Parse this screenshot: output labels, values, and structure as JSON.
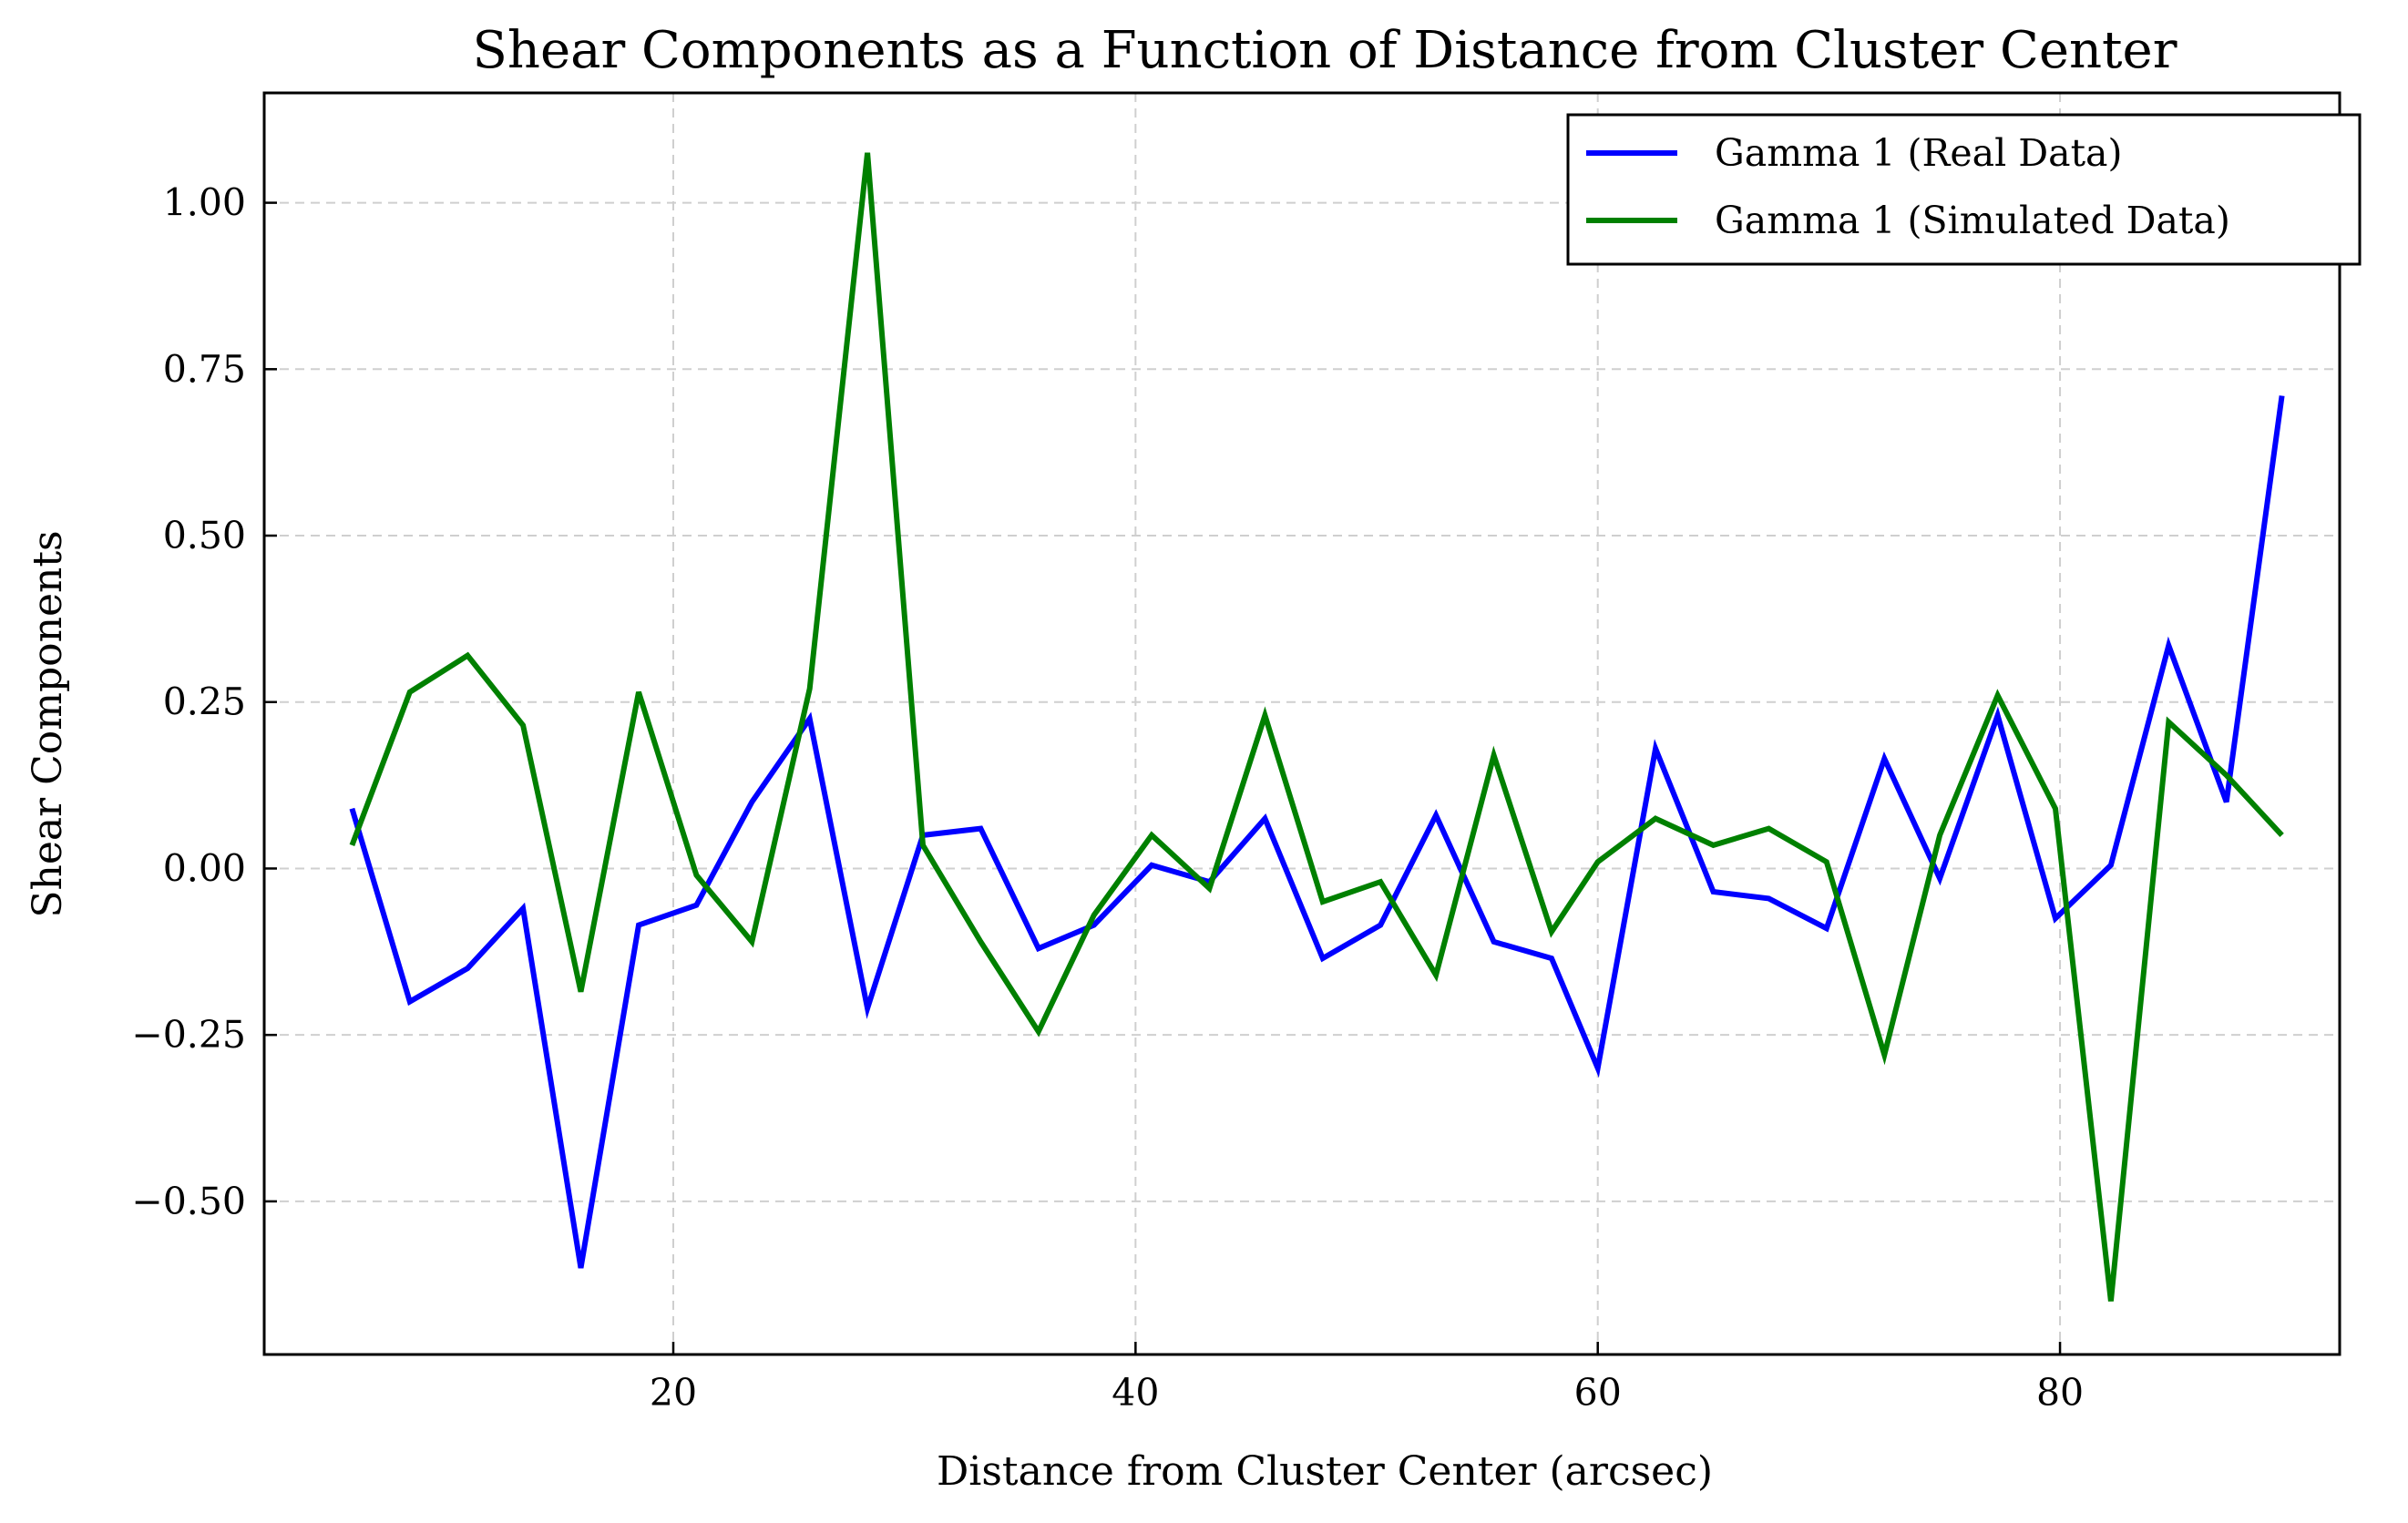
{
  "chart_data": {
    "type": "line",
    "title": "Shear Components as a Function of Distance from Cluster Center",
    "xlabel": "Distance from Cluster Center (arcsec)",
    "ylabel": "Shear Components",
    "xlim": [
      2.3,
      92.1
    ],
    "ylim": [
      -0.73,
      1.165
    ],
    "xticks": [
      20,
      40,
      60,
      80
    ],
    "xtick_labels": [
      "20",
      "40",
      "60",
      "80"
    ],
    "yticks": [
      -0.5,
      -0.25,
      0.0,
      0.25,
      0.5,
      0.75,
      1.0
    ],
    "ytick_labels": [
      "−0.50",
      "−0.25",
      "0.00",
      "0.25",
      "0.50",
      "0.75",
      "1.00"
    ],
    "grid": true,
    "legend_position": "top-right",
    "x": [
      6.1,
      8.6,
      11.1,
      13.5,
      16.0,
      18.5,
      21.0,
      23.4,
      25.9,
      28.4,
      30.8,
      33.3,
      35.8,
      38.2,
      40.7,
      43.2,
      45.6,
      48.1,
      50.6,
      53.0,
      55.5,
      58.0,
      60.0,
      62.5,
      65.0,
      67.4,
      69.9,
      72.4,
      74.8,
      77.3,
      79.8,
      82.2,
      84.7,
      87.2,
      89.6
    ],
    "series": [
      {
        "name": "Gamma 1 (Real Data)",
        "color": "#0000ff",
        "values": [
          0.09,
          -0.2,
          -0.15,
          -0.06,
          -0.6,
          -0.085,
          -0.055,
          0.1,
          0.225,
          -0.21,
          0.05,
          0.06,
          -0.12,
          -0.085,
          0.005,
          -0.02,
          0.075,
          -0.135,
          -0.085,
          0.08,
          -0.11,
          -0.135,
          -0.3,
          0.18,
          -0.035,
          -0.045,
          -0.09,
          0.165,
          -0.015,
          0.23,
          -0.075,
          0.005,
          0.335,
          0.1,
          0.71
        ]
      },
      {
        "name": "Gamma 1 (Simulated Data)",
        "color": "#008000",
        "values": [
          0.035,
          0.265,
          0.32,
          0.215,
          -0.185,
          0.265,
          -0.01,
          -0.11,
          0.27,
          1.075,
          0.035,
          -0.11,
          -0.245,
          -0.07,
          0.05,
          -0.03,
          0.23,
          -0.05,
          -0.02,
          -0.16,
          0.17,
          -0.095,
          0.01,
          0.075,
          0.035,
          0.06,
          0.01,
          -0.28,
          0.05,
          0.26,
          0.09,
          -0.65,
          0.22,
          0.14,
          0.05
        ]
      }
    ]
  }
}
